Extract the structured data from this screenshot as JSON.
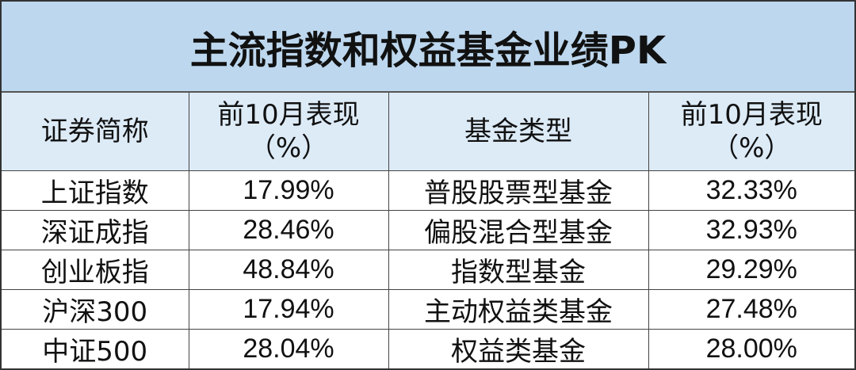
{
  "title": "主流指数和权益基金业绩PK",
  "colors": {
    "title_bg": "#bdd7ee",
    "header_bg": "#ddebf7"
  },
  "headers": [
    "证券简称",
    "前10月表现（%）",
    "基金类型",
    "前10月表现（%）"
  ],
  "header_lines": {
    "perf_line1": "前10月表现",
    "perf_line2": "（%）"
  },
  "rows": [
    {
      "index": "上证指数",
      "index_perf": "17.99%",
      "fund_type": "普股股票型基金",
      "fund_perf": "32.33%"
    },
    {
      "index": "深证成指",
      "index_perf": "28.46%",
      "fund_type": "偏股混合型基金",
      "fund_perf": "32.93%"
    },
    {
      "index": "创业板指",
      "index_perf": "48.84%",
      "fund_type": "指数型基金",
      "fund_perf": "29.29%"
    },
    {
      "index": "沪深300",
      "index_perf": "17.94%",
      "fund_type": "主动权益类基金",
      "fund_perf": "27.48%"
    },
    {
      "index": "中证500",
      "index_perf": "28.04%",
      "fund_type": "权益类基金",
      "fund_perf": "28.00%"
    }
  ]
}
